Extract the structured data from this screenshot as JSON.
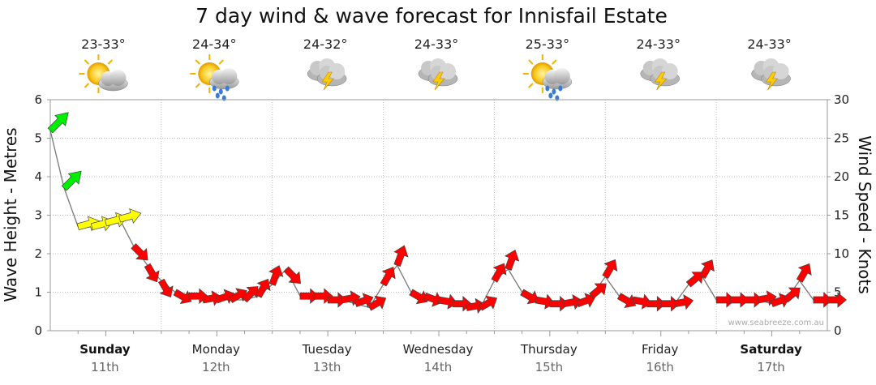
{
  "chart_data": {
    "type": "line",
    "title": "7 day wind & wave forecast for Innisfail Estate",
    "ylabel": "Wave Height - Metres",
    "y2label": "Wind Speed - Knots",
    "ylim": [
      0,
      6
    ],
    "y2lim": [
      0,
      30
    ],
    "yticks": [
      "0",
      "1",
      "2",
      "3",
      "4",
      "5",
      "6"
    ],
    "y2ticks": [
      "0",
      "5",
      "10",
      "15",
      "20",
      "25",
      "30"
    ],
    "grid": true,
    "days": [
      {
        "name": "Sunday",
        "date": "11th",
        "temp": "23-33°",
        "icon": "sun-cloud-icon",
        "bold": true
      },
      {
        "name": "Monday",
        "date": "12th",
        "temp": "24-34°",
        "icon": "sun-rain-icon",
        "bold": false
      },
      {
        "name": "Tuesday",
        "date": "13th",
        "temp": "24-32°",
        "icon": "storm-icon",
        "bold": false
      },
      {
        "name": "Wednesday",
        "date": "14th",
        "temp": "24-33°",
        "icon": "storm-icon",
        "bold": false
      },
      {
        "name": "Thursday",
        "date": "15th",
        "temp": "25-33°",
        "icon": "sun-rain-icon",
        "bold": false
      },
      {
        "name": "Friday",
        "date": "16th",
        "temp": "24-33°",
        "icon": "storm-icon",
        "bold": false
      },
      {
        "name": "Saturday",
        "date": "17th",
        "temp": "24-33°",
        "icon": "storm-icon",
        "bold": true
      }
    ],
    "watermark": "www.seabreeze.com.au",
    "colors": {
      "low": "#ff0000",
      "mid": "#ffff00",
      "high": "#00ee00"
    },
    "series": [
      {
        "name": "wind",
        "x_hours": [
          0,
          3,
          6,
          9,
          12,
          15,
          18,
          21,
          24,
          27,
          30,
          33,
          36,
          39,
          42,
          45,
          48,
          51,
          54,
          57,
          60,
          63,
          66,
          69,
          72,
          75,
          78,
          81,
          84,
          87,
          90,
          93,
          96,
          99,
          102,
          105,
          108,
          111,
          114,
          117,
          120,
          123,
          126,
          129,
          132,
          135,
          138,
          141,
          144,
          147,
          150,
          153,
          156,
          159,
          162,
          165,
          168
        ],
        "wave": [
          5.2,
          3.7,
          2.7,
          2.7,
          2.8,
          2.9,
          2.2,
          1.7,
          1.3,
          1.0,
          0.9,
          0.8,
          0.8,
          0.8,
          0.8,
          0.9,
          1.2,
          1.6,
          0.9,
          0.9,
          0.8,
          0.8,
          0.7,
          0.6,
          1.2,
          1.7,
          1.0,
          0.9,
          0.8,
          0.7,
          0.6,
          0.6,
          1.3,
          1.6,
          1.0,
          0.8,
          0.7,
          0.7,
          0.7,
          0.9,
          1.4,
          0.9,
          0.8,
          0.7,
          0.7,
          0.7,
          1.2,
          1.4,
          0.8,
          0.8,
          0.8,
          0.8,
          0.7,
          0.8,
          1.3,
          0.8,
          0.8
        ],
        "knots": [
          27,
          22,
          15,
          15,
          15,
          15,
          8,
          5,
          4,
          3,
          3,
          3,
          3,
          3,
          4,
          6,
          8,
          9,
          3,
          3,
          3,
          3,
          3,
          4,
          8,
          11,
          4,
          3,
          3,
          3,
          3,
          4,
          7,
          9,
          4,
          3,
          3,
          3,
          3,
          5,
          7,
          4,
          3,
          3,
          3,
          3,
          5,
          6,
          3,
          3,
          3,
          3,
          3,
          3,
          6,
          3,
          4
        ],
        "dir_deg": [
          45,
          45,
          15,
          15,
          15,
          15,
          -45,
          -60,
          -60,
          -30,
          0,
          10,
          20,
          30,
          45,
          60,
          70,
          -45,
          0,
          0,
          0,
          10,
          20,
          30,
          60,
          70,
          -30,
          -20,
          -10,
          0,
          10,
          30,
          60,
          70,
          -30,
          -10,
          0,
          10,
          20,
          40,
          60,
          -30,
          -10,
          0,
          0,
          10,
          40,
          60,
          0,
          0,
          0,
          10,
          20,
          40,
          60,
          0,
          0
        ]
      }
    ]
  }
}
